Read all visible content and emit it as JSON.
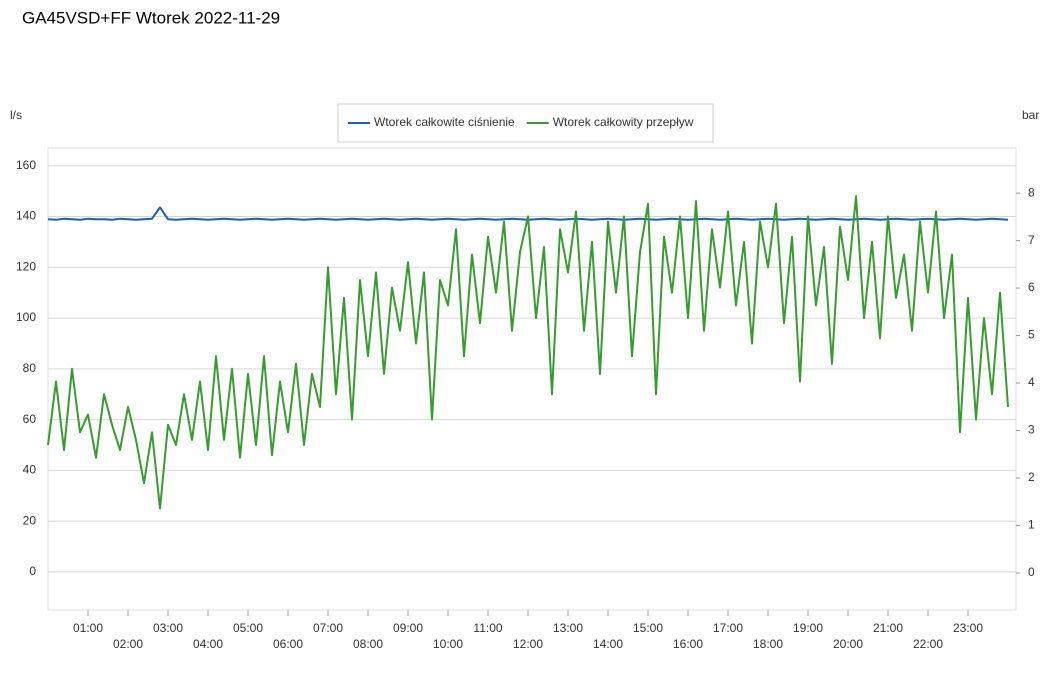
{
  "chart_data": {
    "type": "line",
    "title": "GA45VSD+FF Wtorek 2022-11-29",
    "ylabel": "l/s",
    "y2label": "bar",
    "x": [
      0,
      0.2,
      0.4,
      0.6,
      0.8,
      1,
      1.2,
      1.4,
      1.6,
      1.8,
      2,
      2.2,
      2.4,
      2.6,
      2.8,
      3,
      3.2,
      3.4,
      3.6,
      3.8,
      4,
      4.2,
      4.4,
      4.6,
      4.8,
      5,
      5.2,
      5.4,
      5.6,
      5.8,
      6,
      6.2,
      6.4,
      6.6,
      6.8,
      7,
      7.2,
      7.4,
      7.6,
      7.8,
      8,
      8.2,
      8.4,
      8.6,
      8.8,
      9,
      9.2,
      9.4,
      9.6,
      9.8,
      10,
      10.2,
      10.4,
      10.6,
      10.8,
      11,
      11.2,
      11.4,
      11.6,
      11.8,
      12,
      12.2,
      12.4,
      12.6,
      12.8,
      13,
      13.2,
      13.4,
      13.6,
      13.8,
      14,
      14.2,
      14.4,
      14.6,
      14.8,
      15,
      15.2,
      15.4,
      15.6,
      15.8,
      16,
      16.2,
      16.4,
      16.6,
      16.8,
      17,
      17.2,
      17.4,
      17.6,
      17.8,
      18,
      18.2,
      18.4,
      18.6,
      18.8,
      19,
      19.2,
      19.4,
      19.6,
      19.8,
      20,
      20.2,
      20.4,
      20.6,
      20.8,
      21,
      21.2,
      21.4,
      21.6,
      21.8,
      22,
      22.2,
      22.4,
      22.6,
      22.8,
      23,
      23.2,
      23.4,
      23.6,
      23.8,
      24
    ],
    "series": [
      {
        "name": "Wtorek całkowite ciśnienie",
        "color": "#1f5fb0",
        "axis": "y2",
        "values": [
          7.45,
          7.44,
          7.46,
          7.45,
          7.44,
          7.46,
          7.45,
          7.45,
          7.44,
          7.46,
          7.45,
          7.44,
          7.45,
          7.46,
          7.7,
          7.45,
          7.44,
          7.45,
          7.46,
          7.45,
          7.44,
          7.45,
          7.46,
          7.45,
          7.44,
          7.45,
          7.46,
          7.45,
          7.44,
          7.45,
          7.46,
          7.45,
          7.44,
          7.45,
          7.46,
          7.45,
          7.44,
          7.45,
          7.46,
          7.45,
          7.44,
          7.45,
          7.46,
          7.45,
          7.44,
          7.45,
          7.46,
          7.45,
          7.44,
          7.45,
          7.46,
          7.45,
          7.44,
          7.45,
          7.46,
          7.45,
          7.44,
          7.45,
          7.46,
          7.45,
          7.44,
          7.45,
          7.46,
          7.45,
          7.44,
          7.45,
          7.46,
          7.45,
          7.44,
          7.45,
          7.46,
          7.45,
          7.44,
          7.45,
          7.46,
          7.45,
          7.44,
          7.45,
          7.46,
          7.45,
          7.44,
          7.45,
          7.46,
          7.45,
          7.44,
          7.45,
          7.46,
          7.45,
          7.44,
          7.45,
          7.46,
          7.45,
          7.44,
          7.45,
          7.46,
          7.45,
          7.44,
          7.45,
          7.46,
          7.45,
          7.44,
          7.45,
          7.46,
          7.45,
          7.44,
          7.45,
          7.46,
          7.45,
          7.44,
          7.45,
          7.46,
          7.45,
          7.44,
          7.45,
          7.46,
          7.45,
          7.44,
          7.45,
          7.46,
          7.45,
          7.44
        ]
      },
      {
        "name": "Wtorek całkowity przepływ",
        "color": "#3a9a32",
        "values": [
          50,
          75,
          48,
          80,
          55,
          62,
          45,
          70,
          58,
          48,
          65,
          52,
          35,
          55,
          25,
          58,
          50,
          70,
          52,
          75,
          48,
          85,
          52,
          80,
          45,
          78,
          50,
          85,
          46,
          75,
          55,
          82,
          50,
          78,
          65,
          120,
          70,
          108,
          60,
          115,
          85,
          118,
          78,
          112,
          95,
          122,
          90,
          118,
          60,
          115,
          105,
          135,
          85,
          125,
          98,
          132,
          110,
          138,
          95,
          126,
          140,
          100,
          128,
          70,
          135,
          118,
          142,
          95,
          130,
          78,
          138,
          110,
          140,
          85,
          126,
          145,
          70,
          132,
          110,
          140,
          100,
          146,
          95,
          135,
          112,
          142,
          105,
          130,
          90,
          138,
          120,
          145,
          98,
          132,
          75,
          140,
          105,
          128,
          82,
          136,
          115,
          148,
          100,
          130,
          92,
          140,
          108,
          125,
          95,
          138,
          110,
          142,
          100,
          125,
          55,
          108,
          60,
          100,
          70,
          110,
          65
        ]
      }
    ],
    "xlim": [
      0,
      24.2
    ],
    "xticks": [
      {
        "value": 1,
        "label": "01:00"
      },
      {
        "value": 2,
        "label": "02:00"
      },
      {
        "value": 3,
        "label": "03:00"
      },
      {
        "value": 4,
        "label": "04:00"
      },
      {
        "value": 5,
        "label": "05:00"
      },
      {
        "value": 6,
        "label": "06:00"
      },
      {
        "value": 7,
        "label": "07:00"
      },
      {
        "value": 8,
        "label": "08:00"
      },
      {
        "value": 9,
        "label": "09:00"
      },
      {
        "value": 10,
        "label": "10:00"
      },
      {
        "value": 11,
        "label": "11:00"
      },
      {
        "value": 12,
        "label": "12:00"
      },
      {
        "value": 13,
        "label": "13:00"
      },
      {
        "value": 14,
        "label": "14:00"
      },
      {
        "value": 15,
        "label": "15:00"
      },
      {
        "value": 16,
        "label": "16:00"
      },
      {
        "value": 17,
        "label": "17:00"
      },
      {
        "value": 18,
        "label": "18:00"
      },
      {
        "value": 19,
        "label": "19:00"
      },
      {
        "value": 20,
        "label": "20:00"
      },
      {
        "value": 21,
        "label": "21:00"
      },
      {
        "value": 22,
        "label": "22:00"
      },
      {
        "value": 23,
        "label": "23:00"
      }
    ],
    "ylim": [
      -15,
      167
    ],
    "yticks": [
      0,
      20,
      40,
      60,
      80,
      100,
      120,
      140,
      160
    ],
    "y2lim": [
      -0.78,
      8.95
    ],
    "y2ticks": [
      0,
      1,
      2,
      3,
      4,
      5,
      6,
      7,
      8
    ],
    "grid": true,
    "legend": "top"
  }
}
